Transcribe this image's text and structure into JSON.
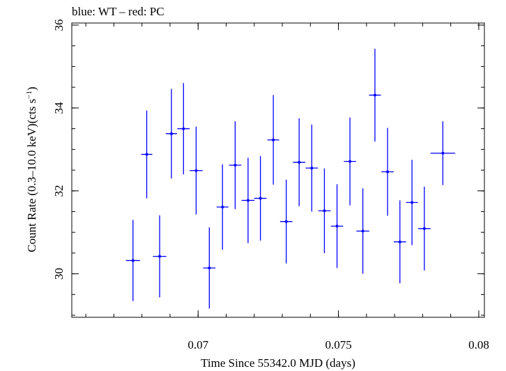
{
  "chart_data": {
    "type": "scatter",
    "title": "blue: WT – red: PC",
    "xlabel": "Time Since 55342.0 MJD (days)",
    "ylabel": "Count Rate (0.3–10.0 keV)(cts s",
    "ylabel_sup": "−1",
    "ylabel_close": ")",
    "xlim": [
      0.0655,
      0.0802
    ],
    "ylim": [
      28.95,
      36.05
    ],
    "x_ticks": [
      {
        "value": 0.07,
        "label": "0.07"
      },
      {
        "value": 0.075,
        "label": "0.075"
      },
      {
        "value": 0.08,
        "label": "0.08"
      }
    ],
    "x_minor_step": 0.001,
    "y_ticks": [
      {
        "value": 30,
        "label": "30"
      },
      {
        "value": 32,
        "label": "32"
      },
      {
        "value": 34,
        "label": "34"
      },
      {
        "value": 36,
        "label": "36"
      }
    ],
    "y_minor_step": 0.5,
    "grid": false,
    "color": "#0000ff",
    "series": [
      {
        "name": "WT",
        "points": [
          {
            "x": 0.06768,
            "xerr": 0.00025,
            "y": 30.32,
            "yerr": 0.98
          },
          {
            "x": 0.06817,
            "xerr": 0.0002,
            "y": 32.88,
            "yerr": 1.06
          },
          {
            "x": 0.06863,
            "xerr": 0.00024,
            "y": 30.42,
            "yerr": 0.99
          },
          {
            "x": 0.06905,
            "xerr": 0.0002,
            "y": 33.38,
            "yerr": 1.08
          },
          {
            "x": 0.06948,
            "xerr": 0.00022,
            "y": 33.5,
            "yerr": 1.1
          },
          {
            "x": 0.06993,
            "xerr": 0.00023,
            "y": 32.49,
            "yerr": 1.06
          },
          {
            "x": 0.0704,
            "xerr": 0.00022,
            "y": 30.14,
            "yerr": 0.98
          },
          {
            "x": 0.07087,
            "xerr": 0.00021,
            "y": 31.61,
            "yerr": 1.03
          },
          {
            "x": 0.07132,
            "xerr": 0.00022,
            "y": 32.62,
            "yerr": 1.06
          },
          {
            "x": 0.07178,
            "xerr": 0.00023,
            "y": 31.77,
            "yerr": 1.03
          },
          {
            "x": 0.07222,
            "xerr": 0.00022,
            "y": 31.82,
            "yerr": 1.02
          },
          {
            "x": 0.07268,
            "xerr": 0.00021,
            "y": 33.23,
            "yerr": 1.08
          },
          {
            "x": 0.07314,
            "xerr": 0.00022,
            "y": 31.26,
            "yerr": 1.01
          },
          {
            "x": 0.0736,
            "xerr": 0.00022,
            "y": 32.69,
            "yerr": 1.06
          },
          {
            "x": 0.07405,
            "xerr": 0.00022,
            "y": 32.55,
            "yerr": 1.05
          },
          {
            "x": 0.0745,
            "xerr": 0.00022,
            "y": 31.52,
            "yerr": 1.02
          },
          {
            "x": 0.07495,
            "xerr": 0.00022,
            "y": 31.15,
            "yerr": 1.01
          },
          {
            "x": 0.07541,
            "xerr": 0.00022,
            "y": 32.71,
            "yerr": 1.06
          },
          {
            "x": 0.07587,
            "xerr": 0.00023,
            "y": 31.03,
            "yerr": 1.03
          },
          {
            "x": 0.0763,
            "xerr": 0.00021,
            "y": 34.31,
            "yerr": 1.12
          },
          {
            "x": 0.07675,
            "xerr": 0.00022,
            "y": 32.46,
            "yerr": 1.06
          },
          {
            "x": 0.07719,
            "xerr": 0.00022,
            "y": 30.77,
            "yerr": 1.0
          },
          {
            "x": 0.07762,
            "xerr": 0.00021,
            "y": 31.72,
            "yerr": 1.03
          },
          {
            "x": 0.07806,
            "xerr": 0.00022,
            "y": 31.09,
            "yerr": 1.01
          },
          {
            "x": 0.07872,
            "xerr": 0.00044,
            "y": 32.91,
            "yerr": 0.77
          }
        ]
      }
    ]
  }
}
